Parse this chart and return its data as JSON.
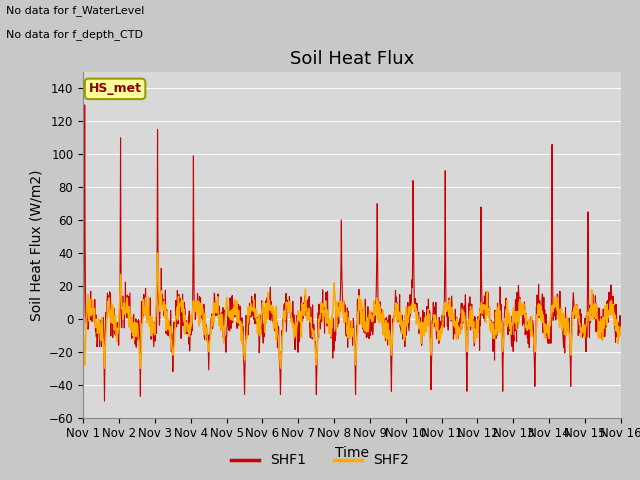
{
  "title": "Soil Heat Flux",
  "ylabel": "Soil Heat Flux (W/m2)",
  "xlabel": "Time",
  "text_top_left_1": "No data for f_WaterLevel",
  "text_top_left_2": "No data for f_depth_CTD",
  "legend_label_box": "HS_met",
  "legend_entries": [
    "SHF1",
    "SHF2"
  ],
  "shf1_color": "#cc0000",
  "shf2_color": "#ffaa00",
  "ylim": [
    -60,
    150
  ],
  "yticks": [
    -60,
    -40,
    -20,
    0,
    20,
    40,
    60,
    80,
    100,
    120,
    140
  ],
  "start_day": 1,
  "end_day": 16,
  "title_fontsize": 13,
  "axis_label_fontsize": 10,
  "tick_fontsize": 8.5,
  "plot_bg_color": "#d8d8d8",
  "fig_bg_color": "#c8c8c8"
}
